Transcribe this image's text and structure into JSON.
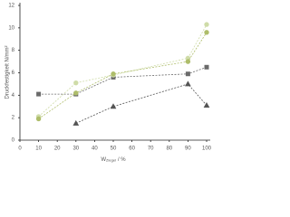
{
  "chart_data": {
    "type": "line",
    "ylabel": "Druckfestigkeit N/mm²",
    "xlabel_main": "W",
    "xlabel_sub": "Ziegel",
    "xlabel_unit": "/ %",
    "x": [
      10,
      30,
      50,
      90,
      100
    ],
    "xlim": [
      0,
      100
    ],
    "xticks": [
      0,
      10,
      20,
      30,
      40,
      50,
      60,
      70,
      80,
      90,
      100
    ],
    "ylim": [
      0,
      12
    ],
    "yticks": [
      0,
      2,
      4,
      6,
      8,
      10,
      12
    ],
    "series": [
      {
        "color": "#6b6b6b",
        "marker": "square",
        "values": [
          4.1,
          4.1,
          5.6,
          5.9,
          6.5
        ]
      },
      {
        "color": "#555555",
        "marker": "triangle",
        "values": [
          null,
          1.5,
          3.0,
          5.0,
          3.1
        ]
      },
      {
        "color": "#cfdca8",
        "marker": "circle",
        "values": [
          2.1,
          5.1,
          5.8,
          7.3,
          10.3
        ]
      },
      {
        "color": "#aebd6a",
        "marker": "circle",
        "values": [
          1.9,
          4.2,
          5.9,
          7.0,
          9.6
        ]
      }
    ]
  }
}
